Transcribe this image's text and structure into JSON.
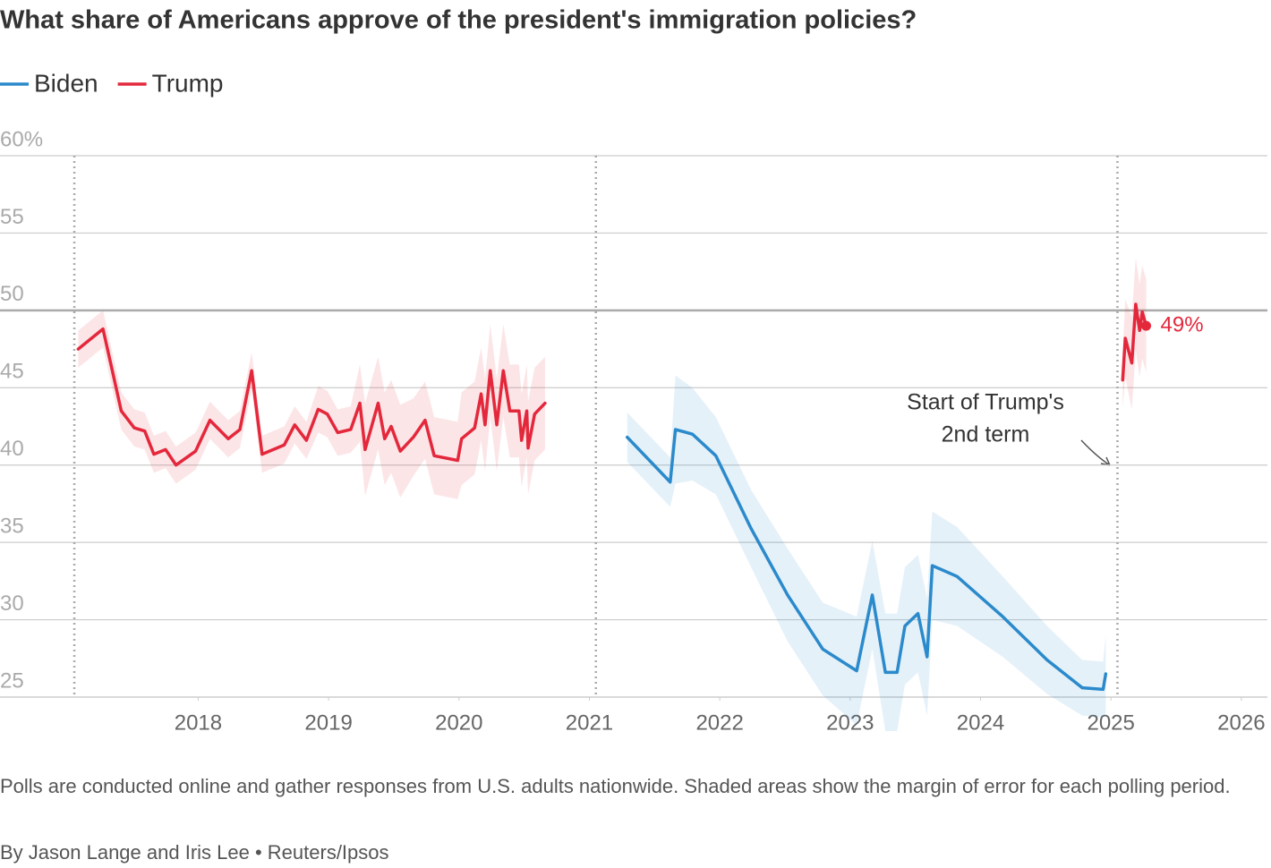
{
  "chart_data": {
    "type": "line",
    "title": "What share of Americans approve of the president's immigration policies?",
    "xlim": [
      2016.48,
      2026.2
    ],
    "xticks": [
      2018,
      2019,
      2020,
      2021,
      2022,
      2023,
      2024,
      2025,
      2026
    ],
    "ylim": [
      25,
      60
    ],
    "yticks": [
      25,
      30,
      35,
      40,
      45,
      50,
      55,
      {
        "value": 60,
        "label": "60%"
      }
    ],
    "grid": true,
    "reference_y": 50,
    "vlines": [
      2017.05,
      2021.05,
      2025.05
    ],
    "series": [
      {
        "name": "Biden",
        "color": "#2b8acb",
        "x": [
          2021.29,
          2021.62,
          2021.66,
          2021.79,
          2021.97,
          2022.24,
          2022.52,
          2022.79,
          2023.05,
          2023.17,
          2023.27,
          2023.36,
          2023.42,
          2023.52,
          2023.59,
          2023.63,
          2023.82,
          2024.17,
          2024.51,
          2024.78,
          2024.94,
          2024.96
        ],
        "values": [
          41.8,
          38.9,
          42.3,
          42.0,
          40.6,
          35.9,
          31.6,
          28.1,
          26.7,
          31.6,
          26.6,
          26.6,
          29.6,
          30.4,
          27.6,
          33.5,
          32.8,
          30.2,
          27.4,
          25.6,
          25.5,
          26.5
        ],
        "ci": [
          1.6,
          1.6,
          3.5,
          3,
          2.5,
          2.5,
          3,
          3,
          3.5,
          3.5,
          3.8,
          3.8,
          3.8,
          3.8,
          3.8,
          3.5,
          3.2,
          2.6,
          2.2,
          1.8,
          1.8,
          2.5
        ]
      },
      {
        "name": "Trump",
        "color": "#e4283c",
        "x": [
          2017.08,
          2017.27,
          2017.41,
          2017.51,
          2017.59,
          2017.66,
          2017.75,
          2017.83,
          2017.98,
          2018.09,
          2018.23,
          2018.32,
          2018.41,
          2018.49,
          2018.66,
          2018.74,
          2018.83,
          2018.92,
          2018.99,
          2019.07,
          2019.17,
          2019.24,
          2019.28,
          2019.38,
          2019.43,
          2019.48,
          2019.55,
          2019.65,
          2019.74,
          2019.81,
          2019.99,
          2020.02,
          2020.12,
          2020.17,
          2020.2,
          2020.24,
          2020.29,
          2020.34,
          2020.39,
          2020.46,
          2020.48,
          2020.52,
          2020.53,
          2020.58,
          2020.66,
          2021.05,
          2025.09,
          2025.11,
          2025.16,
          2025.19,
          2025.22,
          2025.24,
          2025.27
        ],
        "values": [
          47.5,
          48.8,
          43.5,
          42.4,
          42.2,
          40.7,
          41.0,
          40.0,
          40.9,
          42.9,
          41.7,
          42.3,
          46.1,
          40.7,
          41.3,
          42.6,
          41.6,
          43.6,
          43.3,
          42.1,
          42.3,
          44.0,
          41.0,
          44.0,
          41.7,
          42.5,
          40.9,
          41.8,
          42.9,
          40.6,
          40.3,
          41.7,
          42.4,
          44.6,
          42.6,
          46.1,
          42.6,
          46.1,
          43.5,
          43.5,
          41.6,
          43.5,
          41.1,
          43.3,
          44.0,
          null,
          45.5,
          48.2,
          46.6,
          50.4,
          48.7,
          49.9,
          49.0
        ],
        "ci": [
          1.2,
          1.2,
          1.2,
          1.2,
          1.2,
          1.2,
          1.2,
          1.2,
          1.2,
          1.2,
          1.2,
          1.2,
          1.2,
          1.2,
          1.2,
          1.2,
          1.2,
          1.5,
          1.5,
          1.5,
          1.5,
          2.5,
          3,
          3,
          3,
          3,
          3,
          2.5,
          2.5,
          2.5,
          2.5,
          3,
          3,
          3,
          3,
          3,
          3,
          3,
          3,
          3,
          3,
          3,
          3,
          3,
          3,
          null,
          1.8,
          2.5,
          3,
          3,
          3,
          3,
          3
        ],
        "value_labels": [
          null,
          null,
          null,
          null,
          null,
          null,
          null,
          null,
          null,
          null,
          null,
          null,
          null,
          null,
          null,
          null,
          null,
          null,
          null,
          null,
          null,
          null,
          null,
          null,
          null,
          null,
          null,
          null,
          null,
          null,
          null,
          null,
          null,
          null,
          null,
          null,
          null,
          null,
          null,
          null,
          null,
          null,
          null,
          null,
          null,
          null,
          null,
          null,
          null,
          null,
          null,
          null,
          "49%"
        ]
      }
    ],
    "annotation": [
      "Start of Trump's",
      "2nd term"
    ],
    "note": "Polls are conducted online and gather responses from U.S. adults nationwide. Shaded areas show the margin of error for each polling period.",
    "byline": "By Jason Lange and Iris Lee • Reuters/Ipsos"
  }
}
